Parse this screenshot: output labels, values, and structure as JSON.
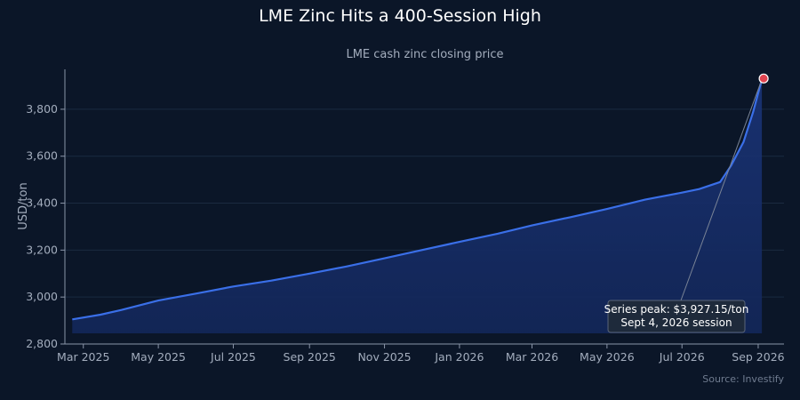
{
  "chart_data": {
    "type": "area",
    "title": "LME Zinc Hits a 400-Session High",
    "subtitle": "LME cash zinc closing price",
    "ylabel": "USD/ton",
    "xlabel": "",
    "ylim": [
      2800,
      3970
    ],
    "y_ticks": [
      2800,
      3000,
      3200,
      3400,
      3600,
      3800
    ],
    "y_tick_labels": [
      "2,800",
      "3,000",
      "3,200",
      "3,400",
      "3,600",
      "3,800"
    ],
    "x_range": [
      "2025-02-14",
      "2026-09-22"
    ],
    "x_ticks": [
      "2025-03-01",
      "2025-05-01",
      "2025-07-01",
      "2025-09-01",
      "2025-11-01",
      "2026-01-01",
      "2026-03-01",
      "2026-05-01",
      "2026-07-01",
      "2026-09-01"
    ],
    "x_tick_labels": [
      "Mar 2025",
      "May 2025",
      "Jul 2025",
      "Sep 2025",
      "Nov 2025",
      "Jan 2026",
      "Mar 2026",
      "May 2026",
      "Jul 2026",
      "Sep 2026"
    ],
    "grid": true,
    "series": [
      {
        "x": [
          "2025-02-20",
          "2025-03-15",
          "2025-04-01",
          "2025-05-01",
          "2025-06-01",
          "2025-07-01",
          "2025-08-01",
          "2025-09-01",
          "2025-10-01",
          "2025-11-01",
          "2025-12-01",
          "2026-01-01",
          "2026-02-01",
          "2026-03-01",
          "2026-04-01",
          "2026-05-01",
          "2026-06-01",
          "2026-07-01",
          "2026-07-15",
          "2026-08-01",
          "2026-08-10",
          "2026-08-20",
          "2026-08-28",
          "2026-09-04"
        ],
        "y": [
          2905,
          2925,
          2945,
          2985,
          3015,
          3045,
          3070,
          3100,
          3130,
          3165,
          3200,
          3235,
          3270,
          3305,
          3340,
          3375,
          3415,
          3445,
          3460,
          3490,
          3560,
          3660,
          3790,
          3927.15
        ],
        "color": "#3a6fe8"
      }
    ],
    "annotations": [
      {
        "x": "2026-09-04",
        "y": 3927.15,
        "marker_color": "#e0434f",
        "lines": [
          "Series peak: $3,927.15/ton",
          "Sept 4, 2026 session"
        ]
      }
    ],
    "source": "Source: Investify"
  }
}
